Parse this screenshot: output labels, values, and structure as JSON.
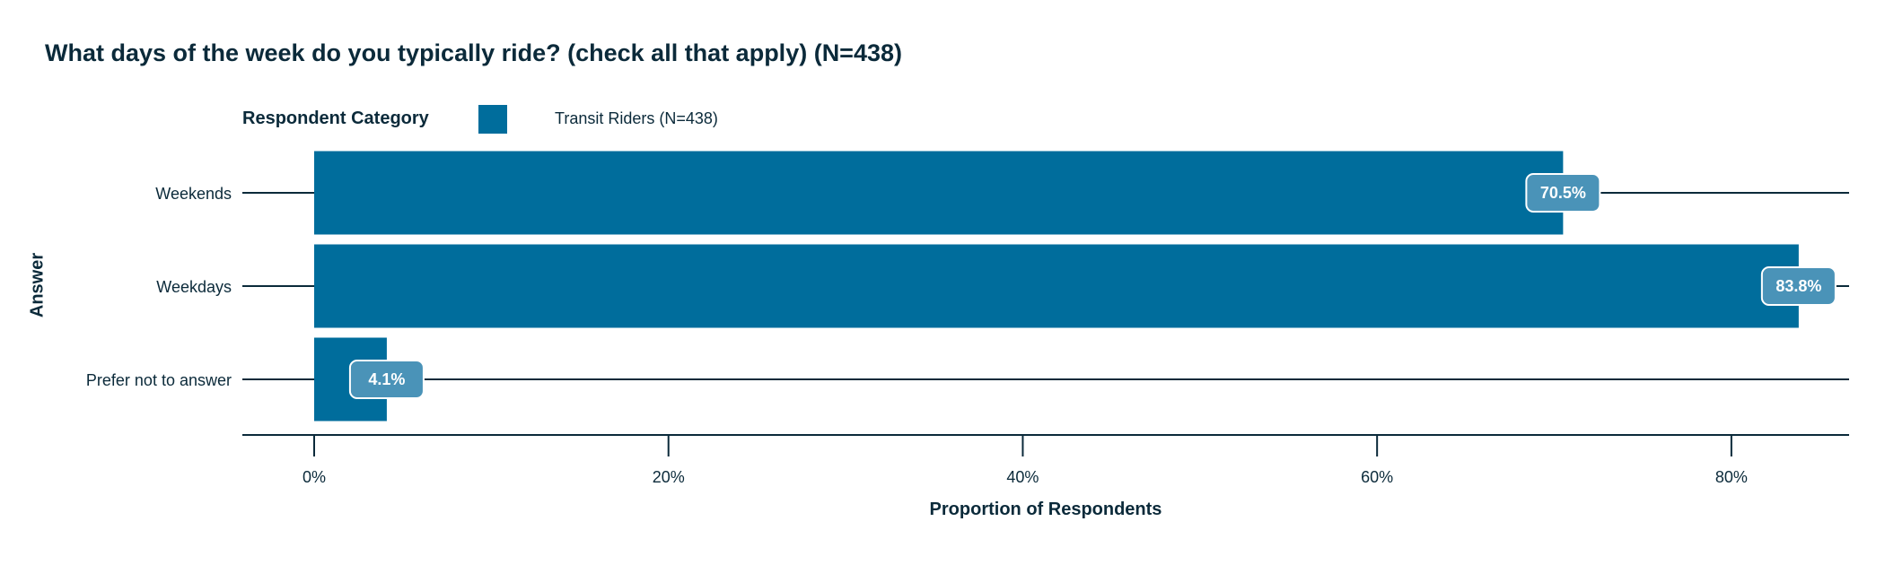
{
  "chart_data": {
    "type": "bar",
    "orientation": "horizontal",
    "title": "What days of the week do you typically ride? (check all that apply) (N=438)",
    "xlabel": "Proportion of Respondents",
    "ylabel": "Answer",
    "legend_title": "Respondent Category",
    "legend_placement": "top-left",
    "categories": [
      "Weekends",
      "Weekdays",
      "Prefer not to answer"
    ],
    "series": [
      {
        "name": "Transit Riders (N=438)",
        "values": [
          70.5,
          83.8,
          4.1
        ],
        "labels": [
          "70.5%",
          "83.8%",
          "4.1%"
        ],
        "color": "#006d9c"
      }
    ],
    "xlim": [
      0,
      88.5
    ],
    "xticks": [
      0,
      20,
      40,
      60,
      80
    ],
    "xtick_labels": [
      "0%",
      "20%",
      "40%",
      "60%",
      "80%"
    ],
    "grid": false,
    "colors": {
      "bar": "#006d9c",
      "label_box": "#4a93b8",
      "axis": "#0b2a3a",
      "text": "#0b2a3a"
    }
  }
}
